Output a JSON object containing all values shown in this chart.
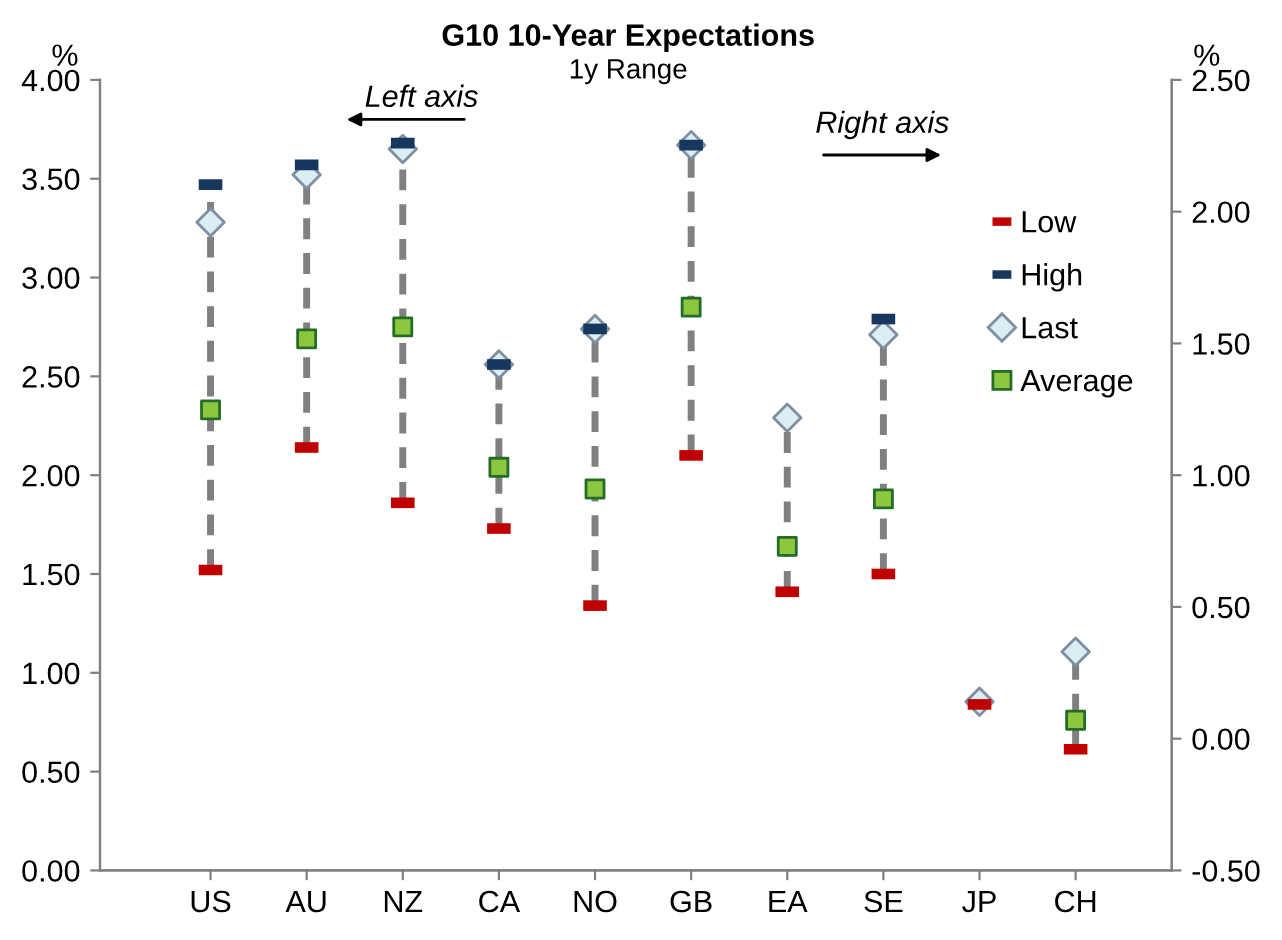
{
  "chart_data": {
    "type": "scatter",
    "title": "G10 10-Year Expectations",
    "subtitle": "1y Range",
    "ylabel": "%",
    "y2label": "%",
    "categories": [
      "US",
      "AU",
      "NZ",
      "CA",
      "NO",
      "GB",
      "EA",
      "SE",
      "JP",
      "CH"
    ],
    "series": [
      {
        "name": "Low",
        "color": "#c00000",
        "marker": "square",
        "values": [
          1.52,
          2.14,
          1.86,
          1.73,
          1.34,
          2.1,
          1.41,
          1.5,
          null,
          null
        ]
      },
      {
        "name": "High",
        "color": "#17375e",
        "marker": "square",
        "values": [
          3.47,
          3.57,
          3.68,
          2.56,
          2.74,
          3.67,
          null,
          2.79,
          null,
          null
        ]
      },
      {
        "name": "Last",
        "color": "#dbeef4",
        "marker": "diamond",
        "values": [
          3.28,
          3.52,
          3.65,
          2.56,
          2.74,
          3.67,
          2.29,
          2.71,
          null,
          null
        ]
      },
      {
        "name": "Average",
        "color": "#8dc63f",
        "marker": "square",
        "values": [
          2.33,
          2.69,
          2.75,
          2.04,
          1.93,
          2.85,
          1.64,
          1.88,
          null,
          null
        ]
      },
      {
        "color": "#c00000",
        "marker": "square",
        "axis": "y2",
        "values": [
          null,
          null,
          null,
          null,
          null,
          null,
          null,
          null,
          0.13,
          -0.04
        ]
      },
      {
        "color": "#dbeef4",
        "marker": "diamond",
        "axis": "y2",
        "values": [
          null,
          null,
          null,
          null,
          null,
          null,
          null,
          null,
          0.14,
          0.33
        ]
      },
      {
        "color": "#8dc63f",
        "marker": "square",
        "axis": "y2",
        "values": [
          null,
          null,
          null,
          null,
          null,
          null,
          null,
          null,
          null,
          0.07
        ]
      }
    ],
    "ylim": [
      0,
      4
    ],
    "yticks": [
      {
        "value": 0,
        "label": "0.00"
      },
      {
        "value": 0.5,
        "label": "0.50"
      },
      {
        "value": 1,
        "label": "1.00"
      },
      {
        "value": 1.5,
        "label": "1.50"
      },
      {
        "value": 2,
        "label": "2.00"
      },
      {
        "value": 2.5,
        "label": "2.50"
      },
      {
        "value": 3,
        "label": "3.00"
      },
      {
        "value": 3.5,
        "label": "3.50"
      },
      {
        "value": 4,
        "label": "4.00"
      }
    ],
    "y2lim": [
      -0.5,
      2.5
    ],
    "y2ticks": [
      {
        "value": -0.5,
        "label": "-0.50"
      },
      {
        "value": 0,
        "label": "0.00"
      },
      {
        "value": 0.5,
        "label": "0.50"
      },
      {
        "value": 1,
        "label": "1.00"
      },
      {
        "value": 1.5,
        "label": "1.50"
      },
      {
        "value": 2,
        "label": "2.00"
      },
      {
        "value": 2.5,
        "label": "2.50"
      }
    ],
    "annotations": [
      "Left axis",
      "Right axis"
    ],
    "grid": false,
    "legend": "top right"
  }
}
